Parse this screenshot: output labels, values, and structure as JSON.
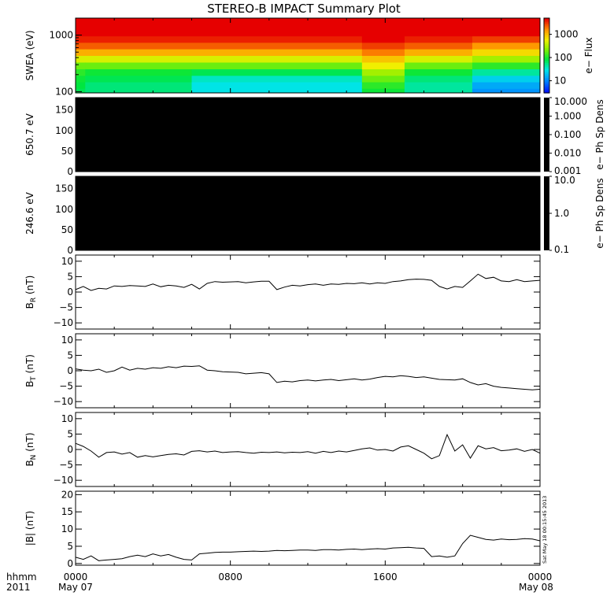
{
  "title": "STEREO-B IMPACT Summary Plot",
  "footer": {
    "x_left_label_1": "hhmm",
    "x_left_label_2": "2011",
    "date_start": "May 07",
    "date_end": "May 08",
    "x_ticks": [
      "0000",
      "0800",
      "1600",
      "0000"
    ],
    "timestamp": "Sat May 18 00:15:45 2013"
  },
  "colors": {
    "line": "#000000",
    "empty_spectrogram": "#000000"
  },
  "chart_data": [
    {
      "type": "heatmap",
      "ylabel": "SWEA (eV)",
      "yscale": "log",
      "ylim": [
        95,
        2000
      ],
      "yticks": [
        "1000",
        "100"
      ],
      "colorbar_label": "e− Flux",
      "colorbar_ticks": [
        "1000",
        "100",
        "10"
      ],
      "colorbar_scale": "log",
      "colorbar_range": [
        3,
        5000
      ],
      "colormap": "rainbow",
      "x_range_hours": [
        0,
        24
      ],
      "energy_bands_eV": [
        100,
        130,
        170,
        220,
        290,
        380,
        500,
        650,
        850,
        1100,
        1450,
        1900
      ],
      "time_segments": [
        {
          "start_h": 0.0,
          "end_h": 0.5,
          "levels": [
            1.9,
            1.95,
            2.0,
            2.1,
            2.3,
            2.7,
            3.1,
            3.4,
            3.6,
            3.9,
            4.3,
            5.0
          ]
        },
        {
          "start_h": 0.5,
          "end_h": 6.0,
          "levels": [
            1.8,
            1.8,
            1.9,
            2.0,
            2.3,
            2.7,
            3.1,
            3.4,
            3.6,
            3.9,
            4.3,
            5.0
          ]
        },
        {
          "start_h": 6.0,
          "end_h": 14.8,
          "levels": [
            1.5,
            1.5,
            1.6,
            1.9,
            2.3,
            2.7,
            3.1,
            3.4,
            3.6,
            3.9,
            4.3,
            5.0
          ]
        },
        {
          "start_h": 14.8,
          "end_h": 17.0,
          "levels": [
            2.0,
            2.1,
            2.3,
            2.5,
            2.8,
            3.0,
            3.3,
            3.5,
            3.7,
            3.9,
            4.3,
            5.0
          ]
        },
        {
          "start_h": 17.0,
          "end_h": 20.5,
          "levels": [
            1.7,
            1.7,
            1.8,
            2.0,
            2.3,
            2.7,
            3.1,
            3.4,
            3.6,
            3.9,
            4.3,
            5.0
          ]
        },
        {
          "start_h": 20.5,
          "end_h": 24.0,
          "levels": [
            1.1,
            1.2,
            1.4,
            1.7,
            2.1,
            2.5,
            2.9,
            3.2,
            3.5,
            3.8,
            4.3,
            5.0
          ]
        }
      ]
    },
    {
      "type": "heatmap",
      "ylabel": "650.7 eV",
      "ylim": [
        0,
        180
      ],
      "yticks": [
        "150",
        "100",
        "50",
        "0"
      ],
      "colorbar_label": "e− Ph Sp Dens",
      "colorbar_ticks": [
        "10.000",
        "1.000",
        "0.100",
        "0.010",
        "0.001"
      ],
      "colorbar_scale": "log",
      "colorbar_range": [
        0.001,
        10
      ],
      "x_range_hours": [
        0,
        24
      ],
      "fill": "no data (black)"
    },
    {
      "type": "heatmap",
      "ylabel": "246.6 eV",
      "ylim": [
        0,
        180
      ],
      "yticks": [
        "150",
        "100",
        "50",
        "0"
      ],
      "colorbar_label": "e− Ph Sp Dens",
      "colorbar_ticks": [
        "10.0",
        "1.0",
        "0.1"
      ],
      "colorbar_scale": "log",
      "colorbar_range": [
        0.1,
        10
      ],
      "x_range_hours": [
        0,
        24
      ],
      "fill": "no data (black)"
    },
    {
      "type": "line",
      "ylabel": "B",
      "ylabel_sub": "R",
      "ylabel_unit": " (nT)",
      "ylim": [
        -12,
        12
      ],
      "yticks": [
        "10",
        "5",
        "0",
        "−5",
        "−10"
      ],
      "x_hours": [
        0,
        0.4,
        0.8,
        1.2,
        1.6,
        2.0,
        2.4,
        2.8,
        3.2,
        3.6,
        4.0,
        4.4,
        4.8,
        5.2,
        5.6,
        6.0,
        6.4,
        6.8,
        7.2,
        7.6,
        8.0,
        8.4,
        8.8,
        9.2,
        9.6,
        10.0,
        10.4,
        10.8,
        11.2,
        11.6,
        12.0,
        12.4,
        12.8,
        13.2,
        13.6,
        14.0,
        14.4,
        14.8,
        15.2,
        15.6,
        16.0,
        16.4,
        16.8,
        17.2,
        17.6,
        18.0,
        18.4,
        18.8,
        19.2,
        19.6,
        20.0,
        20.4,
        20.8,
        21.2,
        21.6,
        22.0,
        22.4,
        22.8,
        23.2,
        23.6,
        24.0
      ],
      "values": [
        0.8,
        1.8,
        0.5,
        1.2,
        1.0,
        2.0,
        1.8,
        2.1,
        2.0,
        1.8,
        2.6,
        1.7,
        2.2,
        2.0,
        1.5,
        2.5,
        1.0,
        2.8,
        3.4,
        3.2,
        3.3,
        3.4,
        3.0,
        3.3,
        3.5,
        3.5,
        0.8,
        1.6,
        2.2,
        2.0,
        2.4,
        2.6,
        2.2,
        2.6,
        2.5,
        2.8,
        2.7,
        3.0,
        2.6,
        3.0,
        2.8,
        3.4,
        3.6,
        4.0,
        4.2,
        4.1,
        3.8,
        1.8,
        1.0,
        1.8,
        1.5,
        3.6,
        5.8,
        4.4,
        4.8,
        3.6,
        3.4,
        4.0,
        3.4,
        3.6,
        3.8
      ]
    },
    {
      "type": "line",
      "ylabel": "B",
      "ylabel_sub": "T",
      "ylabel_unit": " (nT)",
      "ylim": [
        -12,
        12
      ],
      "yticks": [
        "10",
        "5",
        "0",
        "−5",
        "−10"
      ],
      "x_hours": [
        0,
        0.4,
        0.8,
        1.2,
        1.6,
        2.0,
        2.4,
        2.8,
        3.2,
        3.6,
        4.0,
        4.4,
        4.8,
        5.2,
        5.6,
        6.0,
        6.4,
        6.8,
        7.2,
        7.6,
        8.0,
        8.4,
        8.8,
        9.2,
        9.6,
        10.0,
        10.4,
        10.8,
        11.2,
        11.6,
        12.0,
        12.4,
        12.8,
        13.2,
        13.6,
        14.0,
        14.4,
        14.8,
        15.2,
        15.6,
        16.0,
        16.4,
        16.8,
        17.2,
        17.6,
        18.0,
        18.4,
        18.8,
        19.2,
        19.6,
        20.0,
        20.4,
        20.8,
        21.2,
        21.6,
        22.0,
        22.4,
        22.8,
        23.2,
        23.6,
        24.0
      ],
      "values": [
        0.6,
        0.2,
        0.0,
        0.5,
        -0.5,
        0.0,
        1.2,
        0.2,
        0.8,
        0.5,
        1.0,
        0.8,
        1.3,
        1.0,
        1.5,
        1.4,
        1.6,
        0.2,
        0.0,
        -0.3,
        -0.4,
        -0.5,
        -1.0,
        -0.8,
        -0.6,
        -1.0,
        -3.8,
        -3.4,
        -3.6,
        -3.2,
        -3.0,
        -3.3,
        -3.0,
        -2.8,
        -3.2,
        -2.9,
        -2.6,
        -3.0,
        -2.7,
        -2.2,
        -1.8,
        -2.0,
        -1.6,
        -1.8,
        -2.2,
        -2.0,
        -2.4,
        -2.8,
        -2.9,
        -3.0,
        -2.6,
        -3.8,
        -4.6,
        -4.2,
        -5.0,
        -5.4,
        -5.6,
        -5.8,
        -6.0,
        -6.2,
        -6.0
      ]
    },
    {
      "type": "line",
      "ylabel": "B",
      "ylabel_sub": "N",
      "ylabel_unit": " (nT)",
      "ylim": [
        -12,
        12
      ],
      "yticks": [
        "10",
        "5",
        "0",
        "−5",
        "−10"
      ],
      "x_hours": [
        0,
        0.4,
        0.8,
        1.2,
        1.6,
        2.0,
        2.4,
        2.8,
        3.2,
        3.6,
        4.0,
        4.4,
        4.8,
        5.2,
        5.6,
        6.0,
        6.4,
        6.8,
        7.2,
        7.6,
        8.0,
        8.4,
        8.8,
        9.2,
        9.6,
        10.0,
        10.4,
        10.8,
        11.2,
        11.6,
        12.0,
        12.4,
        12.8,
        13.2,
        13.6,
        14.0,
        14.4,
        14.8,
        15.2,
        15.6,
        16.0,
        16.4,
        16.8,
        17.2,
        17.6,
        18.0,
        18.4,
        18.8,
        19.2,
        19.6,
        20.0,
        20.4,
        20.8,
        21.2,
        21.6,
        22.0,
        22.4,
        22.8,
        23.2,
        23.6,
        24.0
      ],
      "values": [
        2.0,
        1.0,
        -0.5,
        -2.5,
        -1.0,
        -0.8,
        -1.5,
        -1.0,
        -2.5,
        -2.0,
        -2.4,
        -2.0,
        -1.6,
        -1.4,
        -1.8,
        -0.6,
        -0.4,
        -0.8,
        -0.5,
        -1.0,
        -0.8,
        -0.7,
        -1.0,
        -1.2,
        -0.9,
        -1.0,
        -0.8,
        -1.1,
        -0.9,
        -1.0,
        -0.7,
        -1.2,
        -0.6,
        -1.0,
        -0.5,
        -0.8,
        -0.3,
        0.2,
        0.5,
        -0.2,
        0.0,
        -0.5,
        0.8,
        1.2,
        0.0,
        -1.2,
        -3.0,
        -2.0,
        4.8,
        -0.5,
        1.5,
        -2.8,
        1.2,
        0.2,
        0.6,
        -0.4,
        -0.2,
        0.2,
        -0.6,
        0.0,
        -1.2
      ]
    },
    {
      "type": "line",
      "ylabel": "|B| (nT)",
      "ylim": [
        -0.5,
        21
      ],
      "yticks": [
        "20",
        "15",
        "10",
        "5",
        "0"
      ],
      "x_hours": [
        0,
        0.4,
        0.8,
        1.2,
        1.6,
        2.0,
        2.4,
        2.8,
        3.2,
        3.6,
        4.0,
        4.4,
        4.8,
        5.2,
        5.6,
        6.0,
        6.4,
        6.8,
        7.2,
        7.6,
        8.0,
        8.4,
        8.8,
        9.2,
        9.6,
        10.0,
        10.4,
        10.8,
        11.2,
        11.6,
        12.0,
        12.4,
        12.8,
        13.2,
        13.6,
        14.0,
        14.4,
        14.8,
        15.2,
        15.6,
        16.0,
        16.4,
        16.8,
        17.2,
        17.6,
        18.0,
        18.4,
        18.8,
        19.2,
        19.6,
        20.0,
        20.4,
        20.8,
        21.2,
        21.6,
        22.0,
        22.4,
        22.8,
        23.2,
        23.6,
        24.0
      ],
      "values": [
        1.8,
        1.2,
        2.2,
        0.8,
        1.0,
        1.2,
        1.4,
        2.0,
        2.4,
        2.0,
        2.8,
        2.2,
        2.6,
        1.8,
        1.2,
        1.0,
        2.8,
        3.0,
        3.2,
        3.3,
        3.3,
        3.4,
        3.5,
        3.6,
        3.5,
        3.6,
        3.8,
        3.7,
        3.8,
        3.9,
        3.9,
        3.8,
        4.0,
        4.0,
        3.9,
        4.1,
        4.2,
        4.0,
        4.2,
        4.3,
        4.2,
        4.5,
        4.6,
        4.7,
        4.5,
        4.4,
        2.0,
        2.2,
        1.8,
        2.2,
        5.8,
        8.2,
        7.6,
        7.0,
        6.8,
        7.1,
        6.9,
        7.0,
        7.2,
        7.1,
        6.6
      ]
    }
  ]
}
